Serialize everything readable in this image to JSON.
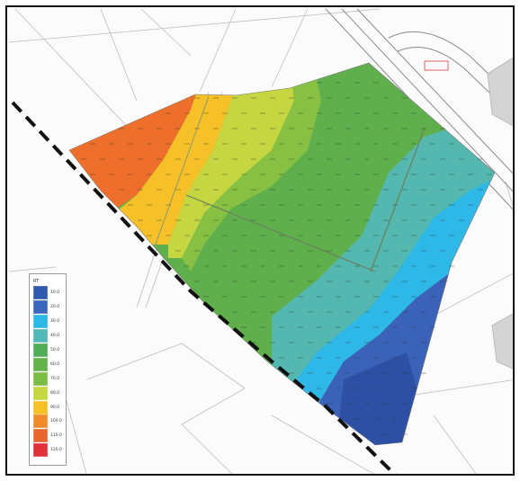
{
  "map": {
    "legend": {
      "title": "RT",
      "items": [
        {
          "label": "10.0",
          "color": "#2f5aad"
        },
        {
          "label": "20.0",
          "color": "#3a66bf"
        },
        {
          "label": "30.0",
          "color": "#2eb8e8"
        },
        {
          "label": "40.0",
          "color": "#52b8b8"
        },
        {
          "label": "50.0",
          "color": "#4fad55"
        },
        {
          "label": "60.0",
          "color": "#62b34a"
        },
        {
          "label": "70.0",
          "color": "#7cbd44"
        },
        {
          "label": "80.0",
          "color": "#c5d640"
        },
        {
          "label": "90.0",
          "color": "#f6c128"
        },
        {
          "label": "100.0",
          "color": "#f08a2a"
        },
        {
          "label": "110.0",
          "color": "#e8652c"
        },
        {
          "label": "120.0",
          "color": "#e0303a"
        }
      ]
    },
    "colors": {
      "boundary_line": "#111111",
      "parcel_lines": "#b8b8b8",
      "road_lines": "#8a8a8a",
      "building_fill": "#d4d4d4",
      "road_marker": "#d04040"
    }
  }
}
